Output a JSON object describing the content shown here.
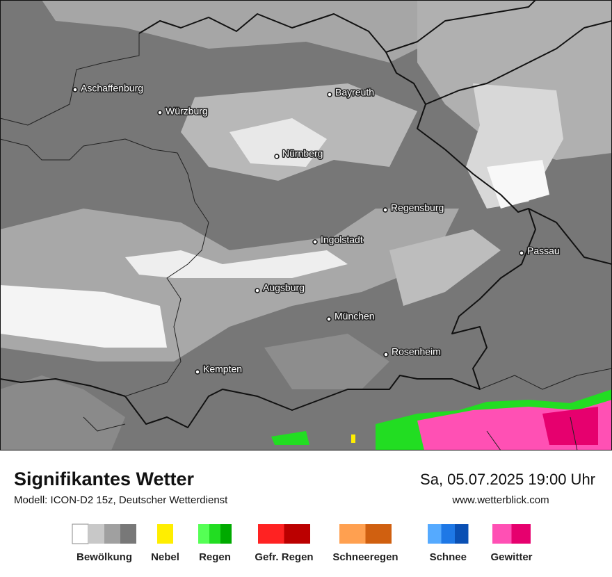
{
  "map": {
    "cities": [
      "Aschaffenburg",
      "Würzburg",
      "Bayreuth",
      "Nürnberg",
      "Regensburg",
      "Ingolstadt",
      "Passau",
      "Augsburg",
      "München",
      "Rosenheim",
      "Kempten"
    ]
  },
  "footer": {
    "title": "Signifikantes Wetter",
    "subtitle": "Modell: ICON-D2 15z, Deutscher Wetterdienst",
    "datetime": "Sa, 05.07.2025 19:00 Uhr",
    "website": "www.wetterblick.com"
  },
  "legend": [
    {
      "label": "Bewölkung",
      "colors": [
        "#ffffff",
        "#c8c8c8",
        "#a0a0a0",
        "#787878"
      ]
    },
    {
      "label": "Nebel",
      "colors": [
        "#ffee00"
      ]
    },
    {
      "label": "Regen",
      "colors": [
        "#55ff55",
        "#22dd22",
        "#00aa00"
      ]
    },
    {
      "label": "Gefr. Regen",
      "colors": [
        "#ff2222",
        "#bb0000"
      ]
    },
    {
      "label": "Schneeregen",
      "colors": [
        "#ffa050",
        "#d06010"
      ]
    },
    {
      "label": "Schnee",
      "colors": [
        "#55aaff",
        "#1e78e6",
        "#0a50b4"
      ]
    },
    {
      "label": "Gewitter",
      "colors": [
        "#ff50b4",
        "#e6006e"
      ]
    }
  ]
}
